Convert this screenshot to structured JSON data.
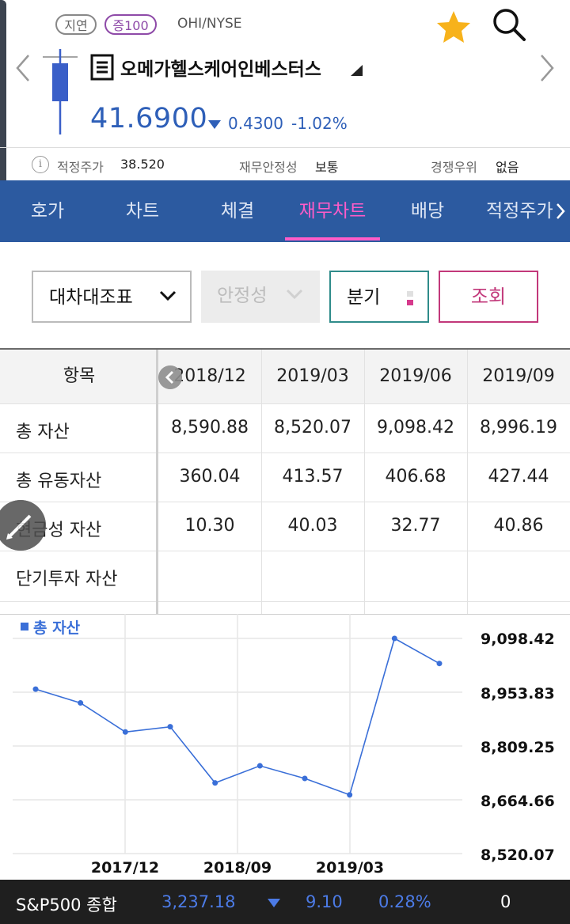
{
  "header": {
    "badge_delay": "지연",
    "badge_margin": "증100",
    "ticker": "OHI/NYSE",
    "stock_name": "오메가헬스케어인베스터스",
    "price": "41.6900",
    "change": "0.4300",
    "change_pct": "-1.02%",
    "price_color": "#2e5fb8"
  },
  "info": {
    "fair_price_label": "적정주가",
    "fair_price_value": "38.520",
    "stability_label": "재무안정성",
    "stability_value": "보통",
    "advantage_label": "경쟁우위",
    "advantage_value": "없음"
  },
  "tabs": [
    {
      "label": "호가"
    },
    {
      "label": "차트"
    },
    {
      "label": "체결"
    },
    {
      "label": "재무차트",
      "active": true
    },
    {
      "label": "배당"
    },
    {
      "label": "적정주가"
    }
  ],
  "filters": {
    "statement": "대차대조표",
    "metric": "안정성",
    "period": "분기",
    "view_button": "조회"
  },
  "table": {
    "header_label": "항목",
    "columns": [
      "2018/12",
      "2019/03",
      "2019/06",
      "2019/09"
    ],
    "rows": [
      {
        "label": "총 자산",
        "values": [
          "8,590.88",
          "8,520.07",
          "9,098.42",
          "8,996.19"
        ]
      },
      {
        "label": "총 유동자산",
        "values": [
          "360.04",
          "413.57",
          "406.68",
          "427.44"
        ]
      },
      {
        "label": "현금성 자산",
        "values": [
          "10.30",
          "40.03",
          "32.77",
          "40.86"
        ]
      },
      {
        "label": "단기투자 자산",
        "values": [
          "",
          "",
          "",
          ""
        ]
      }
    ]
  },
  "chart_data": {
    "type": "line",
    "series": [
      {
        "name": "총 자산",
        "color": "#3a6fd8",
        "values": [
          8962,
          8925,
          8847,
          8861,
          8710,
          8756,
          8722,
          8678,
          9098.42,
          9031
        ]
      }
    ],
    "x_tick_labels": [
      "2017/12",
      "2018/09",
      "2019/03"
    ],
    "y_tick_labels": [
      "9,098.42",
      "8,953.83",
      "8,809.25",
      "8,664.66",
      "8,520.07"
    ],
    "ylim": [
      8520.07,
      9098.42
    ],
    "grid": true,
    "legend": "top-left"
  },
  "bottom": {
    "index_name": "S&P500 종합",
    "index_value": "3,237.18",
    "index_change": "9.10",
    "index_pct": "0.28%",
    "count": "0"
  }
}
